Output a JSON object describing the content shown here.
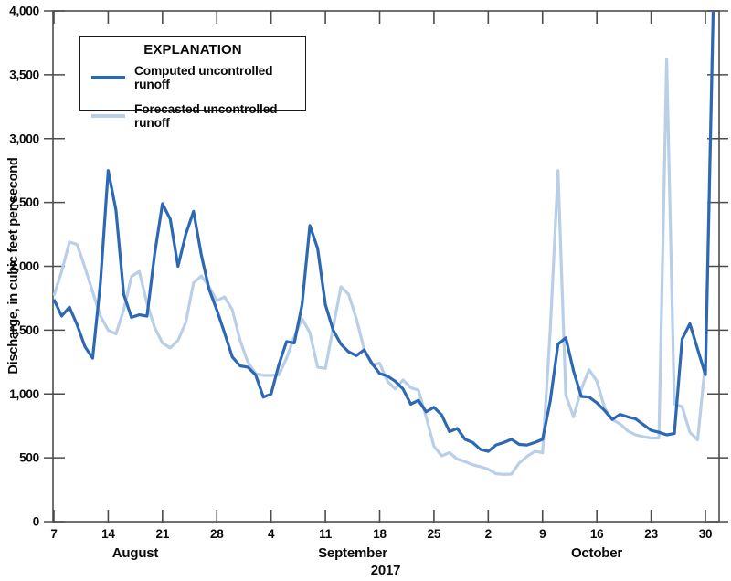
{
  "chart_data": {
    "type": "line",
    "title": "",
    "x_axis": {
      "year": "2017",
      "tick_labels": [
        {
          "day": 0,
          "label": "7"
        },
        {
          "day": 7,
          "label": "14"
        },
        {
          "day": 14,
          "label": "21"
        },
        {
          "day": 21,
          "label": "28"
        },
        {
          "day": 28,
          "label": "4"
        },
        {
          "day": 35,
          "label": "11"
        },
        {
          "day": 42,
          "label": "18"
        },
        {
          "day": 49,
          "label": "25"
        },
        {
          "day": 56,
          "label": "2"
        },
        {
          "day": 63,
          "label": "9"
        },
        {
          "day": 70,
          "label": "16"
        },
        {
          "day": 77,
          "label": "23"
        },
        {
          "day": 84,
          "label": "30"
        }
      ],
      "months": [
        {
          "label": "August",
          "day": 10.5
        },
        {
          "label": "September",
          "day": 38.5
        },
        {
          "label": "October",
          "day": 70
        }
      ],
      "start_date": "August 7, 2017",
      "interval": "daily"
    },
    "y_axis": {
      "label": "Discharge, in cubic feet per second",
      "range": [
        0,
        4000
      ],
      "ticks": [
        {
          "value": 0,
          "label": "0"
        },
        {
          "value": 500,
          "label": "500"
        },
        {
          "value": 1000,
          "label": "1,000"
        },
        {
          "value": 1500,
          "label": "1,500"
        },
        {
          "value": 2000,
          "label": "2,000"
        },
        {
          "value": 2500,
          "label": "2,500"
        },
        {
          "value": 3000,
          "label": "3,000"
        },
        {
          "value": 3500,
          "label": "3,500"
        },
        {
          "value": 4000,
          "label": "4,000"
        }
      ]
    },
    "legend": {
      "title": "EXPLANATION"
    },
    "colors": {
      "axis": "#4c4c4c",
      "text": "#0a0a0a"
    },
    "series": [
      {
        "name": "Computed uncontrolled runoff",
        "color": "#2d68b2",
        "values": [
          1740,
          1610,
          1680,
          1540,
          1370,
          1280,
          1870,
          2750,
          2440,
          1780,
          1600,
          1620,
          1610,
          2100,
          2490,
          2370,
          2000,
          2250,
          2430,
          2090,
          1820,
          1660,
          1480,
          1290,
          1220,
          1210,
          1150,
          975,
          1000,
          1230,
          1410,
          1400,
          1700,
          2320,
          2140,
          1700,
          1500,
          1390,
          1330,
          1300,
          1345,
          1240,
          1160,
          1140,
          1100,
          1040,
          920,
          950,
          860,
          895,
          835,
          705,
          730,
          645,
          620,
          565,
          550,
          600,
          620,
          645,
          605,
          600,
          620,
          645,
          945,
          1390,
          1440,
          1180,
          980,
          975,
          930,
          870,
          800,
          840,
          820,
          805,
          760,
          715,
          700,
          680,
          690,
          1430,
          1550,
          1350,
          1150,
          4000
        ]
      },
      {
        "name": "Forecasted uncontrolled runoff",
        "color": "#b9cfe8",
        "values": [
          1770,
          1960,
          2190,
          2170,
          1990,
          1800,
          1610,
          1500,
          1470,
          1660,
          1920,
          1960,
          1710,
          1520,
          1400,
          1360,
          1420,
          1560,
          1870,
          1925,
          1840,
          1730,
          1760,
          1660,
          1420,
          1250,
          1160,
          1145,
          1145,
          1150,
          1280,
          1450,
          1590,
          1480,
          1210,
          1200,
          1520,
          1840,
          1780,
          1590,
          1350,
          1230,
          1240,
          1100,
          1040,
          1110,
          1050,
          1030,
          820,
          590,
          515,
          540,
          490,
          470,
          445,
          430,
          410,
          375,
          370,
          372,
          460,
          510,
          550,
          540,
          1500,
          2750,
          990,
          820,
          1040,
          1190,
          1100,
          890,
          800,
          765,
          710,
          680,
          665,
          655,
          655,
          3620,
          920,
          900,
          700,
          640,
          1250,
          4000
        ]
      }
    ]
  }
}
